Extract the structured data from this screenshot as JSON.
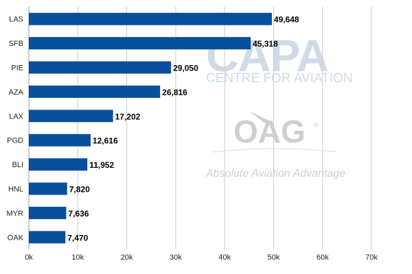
{
  "chart_data": {
    "type": "bar",
    "orientation": "horizontal",
    "categories": [
      "LAS",
      "SFB",
      "PIE",
      "AZA",
      "LAX",
      "PGD",
      "BLI",
      "HNL",
      "MYR",
      "OAK"
    ],
    "values": [
      49648,
      45318,
      29050,
      26816,
      17202,
      12616,
      11952,
      7820,
      7636,
      7470
    ],
    "value_labels": [
      "49,648",
      "45,318",
      "29,050",
      "26,816",
      "17,202",
      "12,616",
      "11,952",
      "7,820",
      "7,636",
      "7,470"
    ],
    "x_ticks": [
      0,
      10000,
      20000,
      30000,
      40000,
      50000,
      60000,
      70000
    ],
    "x_tick_labels": [
      "0k",
      "10k",
      "20k",
      "30k",
      "40k",
      "50k",
      "60k",
      "70k"
    ],
    "xlim": [
      0,
      70000
    ],
    "grid": "vertical",
    "bar_color": "#0a4f9c",
    "title": "",
    "xlabel": "",
    "ylabel": ""
  },
  "watermarks": {
    "capa_logo": "CAPA",
    "capa_sub": "CENTRE FOR AVIATION",
    "oag_logo": "OAG",
    "oag_reg": "®",
    "oag_sub": "Absolute Aviation Advantage",
    "color": "#cfdbe8"
  }
}
